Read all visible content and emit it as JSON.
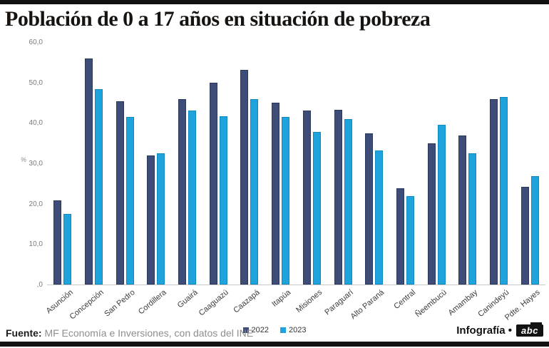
{
  "page": {
    "title": "Población de 0 a 17 años en situación de pobreza",
    "source_label": "Fuente:",
    "source_text": " MF Economía e Inversiones, con datos del INE",
    "credit_text": "Infografía •",
    "logo_text": "abc"
  },
  "colors": {
    "bar_2022_fill": "#3E4C78",
    "bar_2022_border": "#2B385E",
    "bar_2023_fill": "#1FA3DD",
    "bar_2023_border": "#0F89BE",
    "frame_bar": "#121212",
    "axis_line": "#c9c9c9",
    "tick_text": "#7a7a7a",
    "category_text": "#3b3b3b"
  },
  "chart_data": {
    "type": "bar",
    "title": "Población de 0 a 17 años en situación de pobreza",
    "xlabel": "",
    "ylabel": "%",
    "ylim": [
      0,
      60
    ],
    "grid": false,
    "legend_position": "bottom-center",
    "yticks": [
      {
        "label": "60,0",
        "value": 60
      },
      {
        "label": "50,0",
        "value": 50
      },
      {
        "label": "40,0",
        "value": 40
      },
      {
        "label": "30,0",
        "value": 30
      },
      {
        "label": "20,0",
        "value": 20
      },
      {
        "label": "10,0",
        "value": 10
      },
      {
        "label": ",0",
        "value": 0
      }
    ],
    "categories": [
      "Asunción",
      "Concepción",
      "San Pedro",
      "Cordillera",
      "Guairá",
      "Caaguazú",
      "Caazapá",
      "Itapúa",
      "Misiones",
      "Paraguarí",
      "Alto Paraná",
      "Central",
      "Ñeembucú",
      "Amambay",
      "Canindeyú",
      "Pdte. Hayes"
    ],
    "series": [
      {
        "name": "2022",
        "color": "#3E4C78",
        "border": "#2B385E",
        "values": [
          20.8,
          55.9,
          45.3,
          31.9,
          45.8,
          50.0,
          53.1,
          45.0,
          43.0,
          43.2,
          37.4,
          23.8,
          34.9,
          36.8,
          45.8,
          24.1
        ]
      },
      {
        "name": "2023",
        "color": "#1FA3DD",
        "border": "#0F89BE",
        "values": [
          17.4,
          48.4,
          41.5,
          32.4,
          43.1,
          41.7,
          45.8,
          41.5,
          37.7,
          41.0,
          33.2,
          21.8,
          39.6,
          32.4,
          46.5,
          26.8
        ]
      }
    ]
  }
}
